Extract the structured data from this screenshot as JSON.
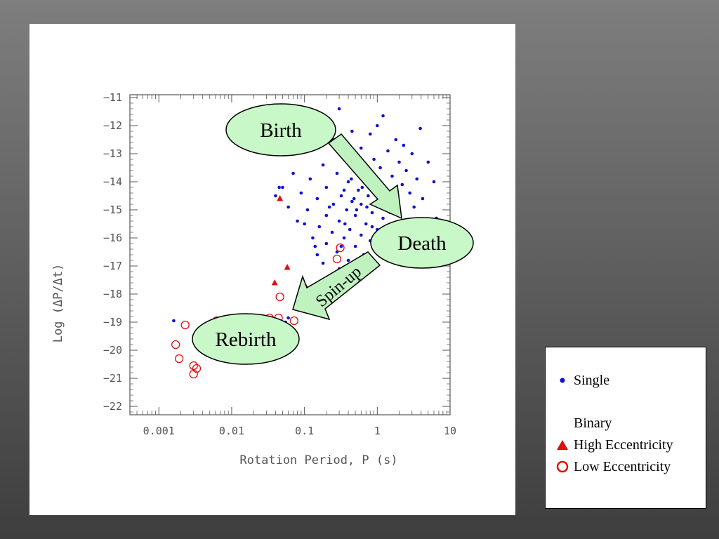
{
  "colors": {
    "single": "#1010d8",
    "binary": "#dd1010",
    "callout_fill": "#c8f7c8",
    "arrow_fill": "#bff2bf"
  },
  "chart_data": {
    "type": "scatter",
    "xlabel": "Rotation Period, P (s)",
    "ylabel": "Log (ΔP/Δt)",
    "xscale": "log",
    "xlim": [
      0.0004,
      10
    ],
    "ylim": [
      -22.3,
      -10.9
    ],
    "xticks": [
      {
        "value": 0.001,
        "label": "0.001"
      },
      {
        "value": 0.01,
        "label": "0.01"
      },
      {
        "value": 0.1,
        "label": "0.1"
      },
      {
        "value": 1,
        "label": "1"
      },
      {
        "value": 10,
        "label": "10"
      }
    ],
    "yticks": [
      {
        "value": -11,
        "label": "−11"
      },
      {
        "value": -12,
        "label": "−12"
      },
      {
        "value": -13,
        "label": "−13"
      },
      {
        "value": -14,
        "label": "−14"
      },
      {
        "value": -15,
        "label": "−15"
      },
      {
        "value": -16,
        "label": "−16"
      },
      {
        "value": -17,
        "label": "−17"
      },
      {
        "value": -18,
        "label": "−18"
      },
      {
        "value": -19,
        "label": "−19"
      },
      {
        "value": -20,
        "label": "−20"
      },
      {
        "value": -21,
        "label": "−21"
      },
      {
        "value": -22,
        "label": "−22"
      }
    ],
    "series": [
      {
        "name": "Single",
        "marker": "dot",
        "points": [
          [
            0.3,
            -11.4
          ],
          [
            1.2,
            -11.65
          ],
          [
            3.9,
            -12.1
          ],
          [
            1.0,
            -12.0
          ],
          [
            0.45,
            -12.2
          ],
          [
            0.8,
            -12.3
          ],
          [
            1.8,
            -12.5
          ],
          [
            2.3,
            -12.7
          ],
          [
            0.25,
            -12.5
          ],
          [
            0.6,
            -12.8
          ],
          [
            1.4,
            -12.9
          ],
          [
            3.0,
            -13.0
          ],
          [
            0.35,
            -13.1
          ],
          [
            0.9,
            -13.2
          ],
          [
            2.0,
            -13.3
          ],
          [
            5.0,
            -13.3
          ],
          [
            0.18,
            -13.4
          ],
          [
            0.5,
            -13.5
          ],
          [
            1.1,
            -13.5
          ],
          [
            2.5,
            -13.6
          ],
          [
            0.07,
            -13.7
          ],
          [
            0.28,
            -13.7
          ],
          [
            0.7,
            -13.8
          ],
          [
            1.6,
            -13.8
          ],
          [
            3.5,
            -13.9
          ],
          [
            6.0,
            -14.0
          ],
          [
            0.12,
            -13.9
          ],
          [
            0.4,
            -14.0
          ],
          [
            0.95,
            -14.1
          ],
          [
            2.2,
            -14.1
          ],
          [
            0.05,
            -14.2
          ],
          [
            0.2,
            -14.2
          ],
          [
            0.55,
            -14.3
          ],
          [
            1.3,
            -14.3
          ],
          [
            2.8,
            -14.4
          ],
          [
            0.09,
            -14.4
          ],
          [
            0.32,
            -14.5
          ],
          [
            0.75,
            -14.5
          ],
          [
            1.7,
            -14.6
          ],
          [
            4.2,
            -14.6
          ],
          [
            0.15,
            -14.6
          ],
          [
            0.45,
            -14.7
          ],
          [
            1.0,
            -14.7
          ],
          [
            0.25,
            -14.8
          ],
          [
            0.6,
            -14.8
          ],
          [
            1.4,
            -14.9
          ],
          [
            3.2,
            -14.9
          ],
          [
            0.11,
            -15.0
          ],
          [
            0.38,
            -15.0
          ],
          [
            0.85,
            -15.1
          ],
          [
            2.0,
            -15.1
          ],
          [
            6.5,
            -15.3
          ],
          [
            0.2,
            -15.2
          ],
          [
            0.5,
            -15.2
          ],
          [
            1.2,
            -15.3
          ],
          [
            0.08,
            -15.4
          ],
          [
            0.3,
            -15.4
          ],
          [
            0.7,
            -15.5
          ],
          [
            1.6,
            -15.5
          ],
          [
            3.0,
            -15.6
          ],
          [
            0.16,
            -15.6
          ],
          [
            0.42,
            -15.7
          ],
          [
            1.0,
            -15.7
          ],
          [
            0.24,
            -15.8
          ],
          [
            0.6,
            -15.9
          ],
          [
            1.4,
            -15.9
          ],
          [
            0.13,
            -16.0
          ],
          [
            0.35,
            -16.0
          ],
          [
            0.8,
            -16.1
          ],
          [
            2.4,
            -16.1
          ],
          [
            0.2,
            -16.2
          ],
          [
            0.5,
            -16.3
          ],
          [
            1.1,
            -16.3
          ],
          [
            0.28,
            -16.5
          ],
          [
            0.65,
            -16.6
          ],
          [
            0.15,
            -16.6
          ],
          [
            0.4,
            -16.8
          ],
          [
            0.9,
            -16.9
          ],
          [
            0.3,
            -17.1
          ],
          [
            0.04,
            -14.5
          ],
          [
            0.045,
            -14.2
          ],
          [
            0.06,
            -14.9
          ],
          [
            0.1,
            -15.5
          ],
          [
            0.14,
            -16.3
          ],
          [
            0.18,
            -16.9
          ],
          [
            0.27,
            -17.3
          ],
          [
            0.0016,
            -18.95
          ],
          [
            0.055,
            -19.0
          ],
          [
            0.06,
            -18.85
          ],
          [
            0.35,
            -14.3
          ],
          [
            0.48,
            -14.6
          ],
          [
            0.62,
            -14.2
          ],
          [
            0.52,
            -15.0
          ],
          [
            0.36,
            -15.5
          ],
          [
            0.72,
            -14.9
          ],
          [
            0.85,
            -15.6
          ],
          [
            0.44,
            -13.9
          ],
          [
            0.58,
            -13.6
          ],
          [
            0.32,
            -16.3
          ],
          [
            1.25,
            -14.6
          ],
          [
            1.5,
            -15.1
          ],
          [
            0.22,
            -14.9
          ]
        ]
      },
      {
        "name": "High Eccentricity",
        "marker": "triangle",
        "points": [
          [
            0.046,
            -14.6
          ],
          [
            0.058,
            -17.05
          ],
          [
            0.039,
            -17.6
          ],
          [
            0.105,
            -17.75
          ]
        ]
      },
      {
        "name": "Low Eccentricity",
        "marker": "circle",
        "points": [
          [
            0.0017,
            -19.8
          ],
          [
            0.0019,
            -20.3
          ],
          [
            0.0023,
            -19.1
          ],
          [
            0.003,
            -20.55
          ],
          [
            0.0033,
            -20.65
          ],
          [
            0.003,
            -20.85
          ],
          [
            0.0062,
            -18.95
          ],
          [
            0.033,
            -18.85
          ],
          [
            0.044,
            -18.85
          ],
          [
            0.046,
            -18.1
          ],
          [
            0.072,
            -18.95
          ],
          [
            0.28,
            -16.75
          ],
          [
            0.31,
            -16.35
          ]
        ]
      }
    ],
    "annotations": {
      "birth": "Birth",
      "death": "Death",
      "rebirth": "Rebirth",
      "spinup": "Spin-up"
    }
  },
  "legend": {
    "single": "Single",
    "binary_heading": "Binary",
    "high_ecc": "High Eccentricity",
    "low_ecc": "Low Eccentricity"
  }
}
